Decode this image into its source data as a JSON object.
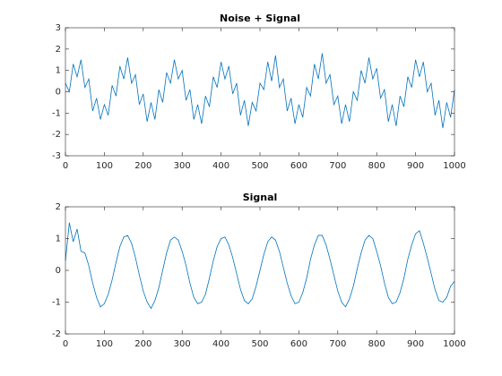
{
  "chart_data": [
    {
      "type": "line",
      "title": "Noise + Signal",
      "color": "#0072bd",
      "x": [
        0,
        10,
        20,
        30,
        40,
        50,
        60,
        70,
        80,
        90,
        100,
        110,
        120,
        130,
        140,
        150,
        160,
        170,
        180,
        190,
        200,
        210,
        220,
        230,
        240,
        250,
        260,
        270,
        280,
        290,
        300,
        310,
        320,
        330,
        340,
        350,
        360,
        370,
        380,
        390,
        400,
        410,
        420,
        430,
        440,
        450,
        460,
        470,
        480,
        490,
        500,
        510,
        520,
        530,
        540,
        550,
        560,
        570,
        580,
        590,
        600,
        610,
        620,
        630,
        640,
        650,
        660,
        670,
        680,
        690,
        700,
        710,
        720,
        730,
        740,
        750,
        760,
        770,
        780,
        790,
        800,
        810,
        820,
        830,
        840,
        850,
        860,
        870,
        880,
        890,
        900,
        910,
        920,
        930,
        940,
        950,
        960,
        970,
        980,
        990,
        1000
      ],
      "values": [
        0.4,
        0.0,
        1.3,
        0.7,
        1.5,
        0.2,
        0.6,
        -0.9,
        -0.3,
        -1.3,
        -0.6,
        -1.1,
        0.3,
        -0.2,
        1.2,
        0.6,
        1.6,
        0.4,
        0.8,
        -0.6,
        -0.1,
        -1.4,
        -0.5,
        -1.3,
        0.1,
        -0.5,
        0.9,
        0.4,
        1.5,
        0.6,
        1.0,
        -0.4,
        0.1,
        -1.3,
        -0.6,
        -1.5,
        -0.2,
        -0.7,
        0.7,
        0.2,
        1.4,
        0.6,
        1.2,
        -0.1,
        0.4,
        -1.1,
        -0.4,
        -1.6,
        -0.5,
        -0.9,
        0.4,
        0.1,
        1.4,
        0.5,
        1.7,
        0.2,
        0.6,
        -0.9,
        -0.3,
        -1.5,
        -0.6,
        -1.2,
        0.2,
        -0.2,
        1.3,
        0.6,
        1.8,
        0.4,
        0.8,
        -0.6,
        -0.2,
        -1.5,
        -0.6,
        -1.4,
        0.0,
        -0.4,
        1.0,
        0.4,
        1.6,
        0.6,
        1.1,
        -0.3,
        0.1,
        -1.4,
        -0.6,
        -1.6,
        -0.2,
        -0.7,
        0.7,
        0.2,
        1.5,
        0.7,
        1.4,
        0.0,
        0.4,
        -1.1,
        -0.4,
        -1.7,
        -0.5,
        -1.2,
        0.1
      ],
      "xlim": [
        0,
        1000
      ],
      "xticks": [
        0,
        100,
        200,
        300,
        400,
        500,
        600,
        700,
        800,
        900,
        1000
      ],
      "ylim": [
        -3,
        3
      ],
      "yticks": [
        -3,
        -2,
        -1,
        0,
        1,
        2,
        3
      ]
    },
    {
      "type": "line",
      "title": "Signal",
      "color": "#0072bd",
      "x": [
        0,
        10,
        20,
        30,
        40,
        50,
        60,
        70,
        80,
        90,
        100,
        110,
        120,
        130,
        140,
        150,
        160,
        170,
        180,
        190,
        200,
        210,
        220,
        230,
        240,
        250,
        260,
        270,
        280,
        290,
        300,
        310,
        320,
        330,
        340,
        350,
        360,
        370,
        380,
        390,
        400,
        410,
        420,
        430,
        440,
        450,
        460,
        470,
        480,
        490,
        500,
        510,
        520,
        530,
        540,
        550,
        560,
        570,
        580,
        590,
        600,
        610,
        620,
        630,
        640,
        650,
        660,
        670,
        680,
        690,
        700,
        710,
        720,
        730,
        740,
        750,
        760,
        770,
        780,
        790,
        800,
        810,
        820,
        830,
        840,
        850,
        860,
        870,
        880,
        890,
        900,
        910,
        920,
        930,
        940,
        950,
        960,
        970,
        980,
        990,
        1000
      ],
      "values": [
        0.3,
        1.5,
        0.9,
        1.3,
        0.6,
        0.55,
        0.15,
        -0.4,
        -0.85,
        -1.15,
        -1.05,
        -0.75,
        -0.3,
        0.25,
        0.75,
        1.05,
        1.1,
        0.85,
        0.4,
        -0.15,
        -0.65,
        -1.0,
        -1.2,
        -0.95,
        -0.55,
        0.0,
        0.55,
        0.95,
        1.05,
        0.95,
        0.6,
        0.15,
        -0.4,
        -0.85,
        -1.05,
        -1.0,
        -0.75,
        -0.25,
        0.3,
        0.75,
        1.0,
        1.05,
        0.8,
        0.4,
        -0.1,
        -0.6,
        -0.95,
        -1.05,
        -0.9,
        -0.5,
        0.0,
        0.5,
        0.9,
        1.05,
        0.95,
        0.6,
        0.1,
        -0.4,
        -0.8,
        -1.05,
        -1.0,
        -0.7,
        -0.25,
        0.35,
        0.8,
        1.1,
        1.1,
        0.8,
        0.35,
        -0.15,
        -0.65,
        -1.0,
        -1.15,
        -0.9,
        -0.5,
        0.05,
        0.55,
        0.95,
        1.1,
        1.0,
        0.6,
        0.15,
        -0.4,
        -0.85,
        -1.05,
        -1.0,
        -0.7,
        -0.25,
        0.35,
        0.8,
        1.15,
        1.25,
        0.85,
        0.4,
        -0.1,
        -0.6,
        -0.95,
        -1.0,
        -0.85,
        -0.5,
        -0.35
      ],
      "xlim": [
        0,
        1000
      ],
      "xticks": [
        0,
        100,
        200,
        300,
        400,
        500,
        600,
        700,
        800,
        900,
        1000
      ],
      "ylim": [
        -2,
        2
      ],
      "yticks": [
        -2,
        -1,
        0,
        1,
        2
      ]
    }
  ]
}
